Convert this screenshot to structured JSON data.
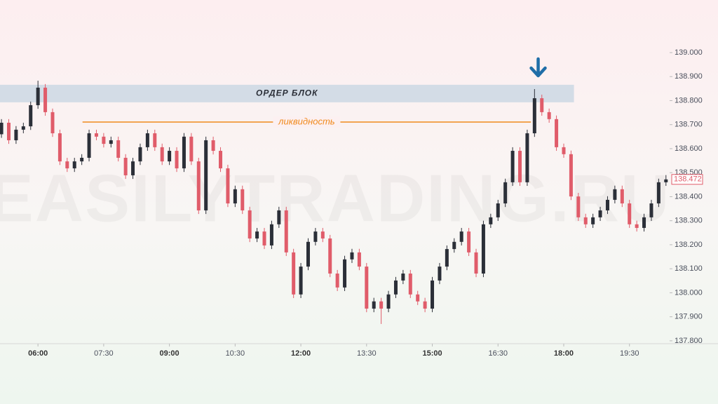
{
  "chart_data": {
    "type": "candlestick",
    "watermark": "EASILYTRADING.RU",
    "up_color": "#2b2f38",
    "down_color": "#e05c6a",
    "xlim": [
      308,
      1225
    ],
    "ylim": [
      137.788,
      139.219
    ],
    "xticks": [
      {
        "value": 360,
        "label": "06:00"
      },
      {
        "value": 450,
        "label": "07:30"
      },
      {
        "value": 540,
        "label": "09:00"
      },
      {
        "value": 630,
        "label": "10:30"
      },
      {
        "value": 720,
        "label": "12:00"
      },
      {
        "value": 810,
        "label": "13:30"
      },
      {
        "value": 900,
        "label": "15:00"
      },
      {
        "value": 990,
        "label": "16:30"
      },
      {
        "value": 1080,
        "label": "18:00"
      },
      {
        "value": 1170,
        "label": "19:30"
      }
    ],
    "yticks": [
      {
        "value": 137.8,
        "label": "137.800"
      },
      {
        "value": 137.9,
        "label": "137.900"
      },
      {
        "value": 138.0,
        "label": "138.000"
      },
      {
        "value": 138.1,
        "label": "138.100"
      },
      {
        "value": 138.2,
        "label": "138.200"
      },
      {
        "value": 138.3,
        "label": "138.300"
      },
      {
        "value": 138.4,
        "label": "138.400"
      },
      {
        "value": 138.5,
        "label": "138.500"
      },
      {
        "value": 138.6,
        "label": "138.600"
      },
      {
        "value": 138.7,
        "label": "138.700"
      },
      {
        "value": 138.8,
        "label": "138.800"
      },
      {
        "value": 138.9,
        "label": "138.900"
      },
      {
        "value": 139.0,
        "label": "139.000"
      }
    ],
    "zone": {
      "label": "ОРДЕР БЛОК",
      "low": 138.793,
      "high": 138.866,
      "x0": 308,
      "x1": 1094,
      "color": "#d3dce6"
    },
    "level": {
      "label": "ликвидность",
      "value": 138.711,
      "x0": 421,
      "x1": 1035,
      "color": "#f08a1c"
    },
    "arrow": {
      "x": 1045,
      "color": "#1f6ea8"
    },
    "x": [
      310,
      320,
      330,
      340,
      350,
      360,
      370,
      380,
      390,
      400,
      410,
      420,
      430,
      440,
      450,
      460,
      470,
      480,
      490,
      500,
      510,
      520,
      530,
      540,
      550,
      560,
      570,
      580,
      590,
      600,
      610,
      620,
      630,
      640,
      650,
      660,
      670,
      680,
      690,
      700,
      710,
      720,
      730,
      740,
      750,
      760,
      770,
      780,
      790,
      800,
      810,
      820,
      830,
      840,
      850,
      860,
      870,
      880,
      890,
      900,
      910,
      920,
      930,
      940,
      950,
      960,
      970,
      980,
      990,
      1000,
      1010,
      1020,
      1030,
      1040,
      1050,
      1060,
      1070,
      1080,
      1090,
      1100,
      1110,
      1120,
      1130,
      1140,
      1150,
      1160,
      1170,
      1180,
      1190,
      1200,
      1210,
      1220
    ],
    "open": [
      138.66,
      138.708,
      138.635,
      138.679,
      138.693,
      138.781,
      138.854,
      138.752,
      138.664,
      138.547,
      138.518,
      138.547,
      138.562,
      138.664,
      138.65,
      138.62,
      138.635,
      138.562,
      138.489,
      138.547,
      138.606,
      138.664,
      138.606,
      138.547,
      138.591,
      138.518,
      138.65,
      138.547,
      138.343,
      138.635,
      138.591,
      138.518,
      138.372,
      138.431,
      138.343,
      138.226,
      138.255,
      138.197,
      138.285,
      138.343,
      138.168,
      137.993,
      138.109,
      138.212,
      138.255,
      138.226,
      138.08,
      138.022,
      138.139,
      138.168,
      138.109,
      137.934,
      137.964,
      137.934,
      137.993,
      138.051,
      138.08,
      137.993,
      137.964,
      137.934,
      138.051,
      138.109,
      138.182,
      138.212,
      138.255,
      138.168,
      138.08,
      138.285,
      138.314,
      138.372,
      138.46,
      138.591,
      138.46,
      138.664,
      138.81,
      138.752,
      138.723,
      138.606,
      138.577,
      138.401,
      138.314,
      138.285,
      138.314,
      138.343,
      138.387,
      138.431,
      138.372,
      138.285,
      138.27,
      138.314,
      138.372,
      138.46
    ],
    "high": [
      138.723,
      138.723,
      138.694,
      138.708,
      138.796,
      138.883,
      138.869,
      138.767,
      138.679,
      138.562,
      138.562,
      138.577,
      138.679,
      138.679,
      138.665,
      138.65,
      138.65,
      138.577,
      138.562,
      138.621,
      138.679,
      138.679,
      138.621,
      138.606,
      138.606,
      138.665,
      138.665,
      138.562,
      138.65,
      138.65,
      138.606,
      138.533,
      138.446,
      138.446,
      138.358,
      138.27,
      138.27,
      138.3,
      138.358,
      138.358,
      138.183,
      138.124,
      138.227,
      138.27,
      138.27,
      138.241,
      138.095,
      138.154,
      138.183,
      138.183,
      138.124,
      137.979,
      137.979,
      138.008,
      138.066,
      138.095,
      138.095,
      138.008,
      137.979,
      138.066,
      138.124,
      138.197,
      138.227,
      138.27,
      138.27,
      138.183,
      138.3,
      138.329,
      138.387,
      138.475,
      138.606,
      138.606,
      138.679,
      138.848,
      138.825,
      138.767,
      138.738,
      138.621,
      138.592,
      138.416,
      138.329,
      138.329,
      138.358,
      138.402,
      138.446,
      138.446,
      138.387,
      138.3,
      138.329,
      138.387,
      138.475,
      138.49
    ],
    "low": [
      138.645,
      138.62,
      138.62,
      138.664,
      138.678,
      138.766,
      138.737,
      138.649,
      138.532,
      138.503,
      138.503,
      138.532,
      138.547,
      138.635,
      138.605,
      138.605,
      138.547,
      138.474,
      138.474,
      138.532,
      138.591,
      138.591,
      138.532,
      138.532,
      138.503,
      138.503,
      138.532,
      138.328,
      138.328,
      138.576,
      138.503,
      138.357,
      138.357,
      138.328,
      138.211,
      138.211,
      138.182,
      138.182,
      138.27,
      138.153,
      137.978,
      137.978,
      138.094,
      138.197,
      138.211,
      138.065,
      138.007,
      138.007,
      138.124,
      138.094,
      137.919,
      137.919,
      137.87,
      137.919,
      137.978,
      138.036,
      137.978,
      137.949,
      137.919,
      137.919,
      138.036,
      138.094,
      138.167,
      138.197,
      138.153,
      138.065,
      138.065,
      138.27,
      138.299,
      138.357,
      138.445,
      138.445,
      138.445,
      138.649,
      138.737,
      138.708,
      138.591,
      138.562,
      138.386,
      138.299,
      138.27,
      138.27,
      138.299,
      138.328,
      138.372,
      138.357,
      138.27,
      138.255,
      138.255,
      138.299,
      138.357,
      138.445
    ],
    "close": [
      138.708,
      138.635,
      138.679,
      138.693,
      138.781,
      138.854,
      138.752,
      138.664,
      138.547,
      138.518,
      138.547,
      138.562,
      138.664,
      138.65,
      138.62,
      138.635,
      138.562,
      138.489,
      138.547,
      138.606,
      138.664,
      138.606,
      138.547,
      138.591,
      138.518,
      138.65,
      138.547,
      138.343,
      138.635,
      138.591,
      138.518,
      138.372,
      138.431,
      138.343,
      138.226,
      138.255,
      138.197,
      138.285,
      138.343,
      138.168,
      137.993,
      138.109,
      138.212,
      138.255,
      138.226,
      138.08,
      138.022,
      138.139,
      138.168,
      138.109,
      137.934,
      137.964,
      137.934,
      137.993,
      138.051,
      138.08,
      137.993,
      137.964,
      137.934,
      138.051,
      138.109,
      138.182,
      138.212,
      138.255,
      138.168,
      138.08,
      138.285,
      138.314,
      138.372,
      138.46,
      138.591,
      138.46,
      138.664,
      138.81,
      138.752,
      138.723,
      138.606,
      138.577,
      138.401,
      138.314,
      138.285,
      138.314,
      138.343,
      138.387,
      138.431,
      138.372,
      138.285,
      138.27,
      138.314,
      138.372,
      138.46,
      138.472
    ]
  }
}
